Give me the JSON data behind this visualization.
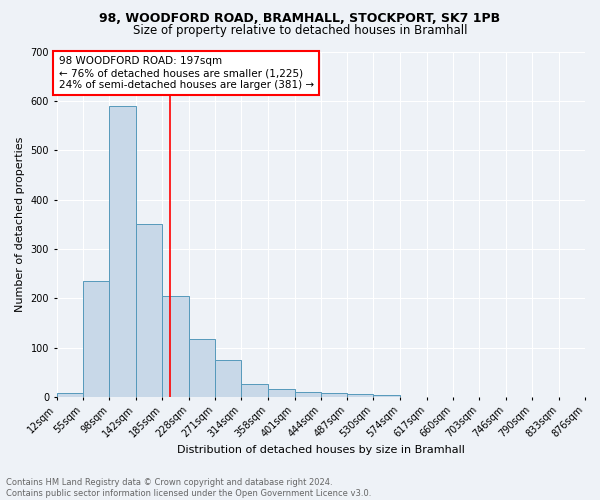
{
  "title1": "98, WOODFORD ROAD, BRAMHALL, STOCKPORT, SK7 1PB",
  "title2": "Size of property relative to detached houses in Bramhall",
  "xlabel": "Distribution of detached houses by size in Bramhall",
  "ylabel": "Number of detached properties",
  "bin_edges": [
    12,
    55,
    98,
    142,
    185,
    228,
    271,
    314,
    358,
    401,
    444,
    487,
    530,
    574,
    617,
    660,
    703,
    746,
    790,
    833,
    876
  ],
  "bar_heights": [
    8,
    235,
    590,
    350,
    205,
    118,
    75,
    27,
    16,
    10,
    7,
    5,
    4,
    0,
    0,
    0,
    0,
    0,
    0,
    0
  ],
  "bar_color": "#c8d8e8",
  "bar_edge_color": "#5599bb",
  "red_line_x": 197,
  "annotation_text": "98 WOODFORD ROAD: 197sqm\n← 76% of detached houses are smaller (1,225)\n24% of semi-detached houses are larger (381) →",
  "annotation_box_color": "white",
  "annotation_box_edge_color": "red",
  "ylim": [
    0,
    700
  ],
  "yticks": [
    0,
    100,
    200,
    300,
    400,
    500,
    600,
    700
  ],
  "footnote": "Contains HM Land Registry data © Crown copyright and database right 2024.\nContains public sector information licensed under the Open Government Licence v3.0.",
  "bg_color": "#eef2f7",
  "grid_color": "white",
  "title1_fontsize": 9,
  "title2_fontsize": 8.5,
  "axis_label_fontsize": 8,
  "tick_fontsize": 7,
  "annotation_fontsize": 7.5,
  "footnote_fontsize": 6,
  "footnote_color": "#666666"
}
